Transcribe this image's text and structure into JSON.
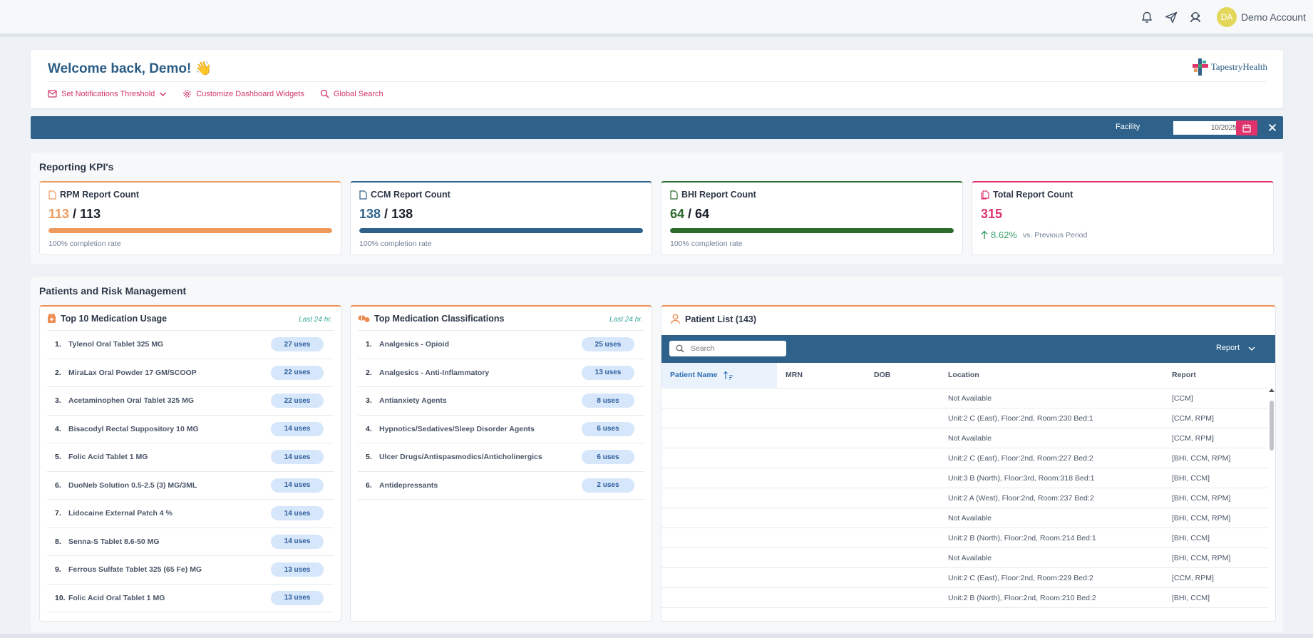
{
  "header": {
    "account_initials": "DA",
    "account_name": "Demo Account",
    "icons": [
      "bell-icon",
      "send-icon",
      "support-icon"
    ]
  },
  "welcome": {
    "title": "Welcome back, Demo! 👋",
    "actions": [
      {
        "label": "Set Notifications Threshold",
        "icon": "mail-icon"
      },
      {
        "label": "Customize Dashboard Widgets",
        "icon": "gear-icon"
      },
      {
        "label": "Global Search",
        "icon": "search-icon"
      }
    ],
    "logo_text": "TapestryHealth"
  },
  "filters": {
    "facility_label": "Facility",
    "date_value": "10/2025"
  },
  "kpi": {
    "section_title": "Reporting KPI's",
    "cards": [
      {
        "title": "RPM Report Count",
        "completed": "113",
        "total": "113",
        "completion_fraction": 1.0,
        "subtitle": "100% completion rate",
        "accent": "#ee9a5c"
      },
      {
        "title": "CCM Report Count",
        "completed": "138",
        "total": "138",
        "completion_fraction": 1.0,
        "subtitle": "100% completion rate",
        "accent": "#2f628a"
      },
      {
        "title": "BHI Report Count",
        "completed": "64",
        "total": "64",
        "completion_fraction": 1.0,
        "subtitle": "100% completion rate",
        "accent": "#2e6b2f"
      },
      {
        "title": "Total Report Count",
        "value": "315",
        "growth": "8.62%",
        "growth_sub": "vs. Previous Period",
        "accent": "#e0336d"
      }
    ]
  },
  "risk": {
    "section_title": "Patients and Risk Management",
    "medication_usage": {
      "title": "Top 10 Medication Usage",
      "tag": "Last 24 hr.",
      "items": [
        {
          "rank": "1.",
          "name": "Tylenol Oral Tablet 325 MG",
          "uses": "27 uses"
        },
        {
          "rank": "2.",
          "name": "MiraLax Oral Powder 17 GM/SCOOP",
          "uses": "22 uses"
        },
        {
          "rank": "3.",
          "name": "Acetaminophen Oral Tablet 325 MG",
          "uses": "22 uses"
        },
        {
          "rank": "4.",
          "name": "Bisacodyl Rectal Suppository 10 MG",
          "uses": "14 uses"
        },
        {
          "rank": "5.",
          "name": "Folic Acid Tablet 1 MG",
          "uses": "14 uses"
        },
        {
          "rank": "6.",
          "name": "DuoNeb Solution 0.5-2.5 (3) MG/3ML",
          "uses": "14 uses"
        },
        {
          "rank": "7.",
          "name": "Lidocaine External Patch 4 %",
          "uses": "14 uses"
        },
        {
          "rank": "8.",
          "name": "Senna-S Tablet 8.6-50 MG",
          "uses": "14 uses"
        },
        {
          "rank": "9.",
          "name": "Ferrous Sulfate Tablet 325 (65 Fe) MG",
          "uses": "13 uses"
        },
        {
          "rank": "10.",
          "name": "Folic Acid Oral Tablet 1 MG",
          "uses": "13 uses"
        }
      ]
    },
    "medication_classes": {
      "title": "Top Medication Classifications",
      "tag": "Last 24 hr.",
      "items": [
        {
          "rank": "1.",
          "name": "Analgesics - Opioid",
          "uses": "25 uses"
        },
        {
          "rank": "2.",
          "name": "Analgesics - Anti-Inflammatory",
          "uses": "13 uses"
        },
        {
          "rank": "3.",
          "name": "Antianxiety Agents",
          "uses": "8 uses"
        },
        {
          "rank": "4.",
          "name": "Hypnotics/Sedatives/Sleep Disorder Agents",
          "uses": "6 uses"
        },
        {
          "rank": "5.",
          "name": "Ulcer Drugs/Antispasmodics/Anticholinergics",
          "uses": "6 uses"
        },
        {
          "rank": "6.",
          "name": "Antidepressants",
          "uses": "2 uses"
        }
      ]
    },
    "patient_list": {
      "title": "Patient List (143)",
      "search_placeholder": "Search",
      "report_filter": "Report",
      "columns": [
        "Patient Name",
        "MRN",
        "DOB",
        "Location",
        "Report"
      ],
      "rows": [
        {
          "location": "Not Available",
          "report": "[CCM]"
        },
        {
          "location": "Unit:2 C (East), Floor:2nd, Room:230 Bed:1",
          "report": "[CCM, RPM]"
        },
        {
          "location": "Not Available",
          "report": "[CCM, RPM]"
        },
        {
          "location": "Unit:2 C (East), Floor:2nd, Room:227 Bed:2",
          "report": "[BHI, CCM, RPM]"
        },
        {
          "location": "Unit:3 B (North), Floor:3rd, Room:318 Bed:1",
          "report": "[BHI, CCM]"
        },
        {
          "location": "Unit:2 A (West), Floor:2nd, Room:237 Bed:2",
          "report": "[BHI, CCM, RPM]"
        },
        {
          "location": "Not Available",
          "report": "[BHI, CCM, RPM]"
        },
        {
          "location": "Unit:2 B (North), Floor:2nd, Room:214 Bed:1",
          "report": "[BHI, CCM]"
        },
        {
          "location": "Not Available",
          "report": "[BHI, CCM, RPM]"
        },
        {
          "location": "Unit:2 C (East), Floor:2nd, Room:229 Bed:2",
          "report": "[CCM, RPM]"
        },
        {
          "location": "Unit:2 B (North), Floor:2nd, Room:210 Bed:2",
          "report": "[BHI, CCM]"
        }
      ]
    }
  }
}
